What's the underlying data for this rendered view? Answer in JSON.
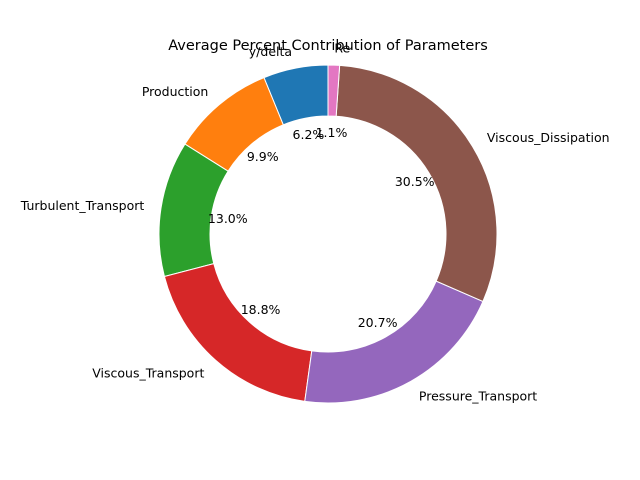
{
  "chart_data": {
    "type": "pie",
    "variant": "donut",
    "title": "Average Percent Contribution of Parameters",
    "start_angle_deg": 90,
    "direction": "counterclockwise",
    "slices": [
      {
        "label": "y/delta",
        "value": 6.2,
        "pct_label": "6.2%",
        "color": "#1f77b4"
      },
      {
        "label": "Production",
        "value": 9.9,
        "pct_label": "9.9%",
        "color": "#ff7f0e"
      },
      {
        "label": "Turbulent_Transport",
        "value": 13.0,
        "pct_label": "13.0%",
        "color": "#2ca02c"
      },
      {
        "label": "Viscous_Transport",
        "value": 18.8,
        "pct_label": "18.8%",
        "color": "#d62728"
      },
      {
        "label": "Pressure_Transport",
        "value": 20.7,
        "pct_label": "20.7%",
        "color": "#9467bd"
      },
      {
        "label": "Viscous_Dissipation",
        "value": 30.5,
        "pct_label": "30.5%",
        "color": "#8c564b"
      },
      {
        "label": "Re",
        "value": 1.1,
        "pct_label": "1.1%",
        "color": "#e377c2"
      }
    ]
  }
}
